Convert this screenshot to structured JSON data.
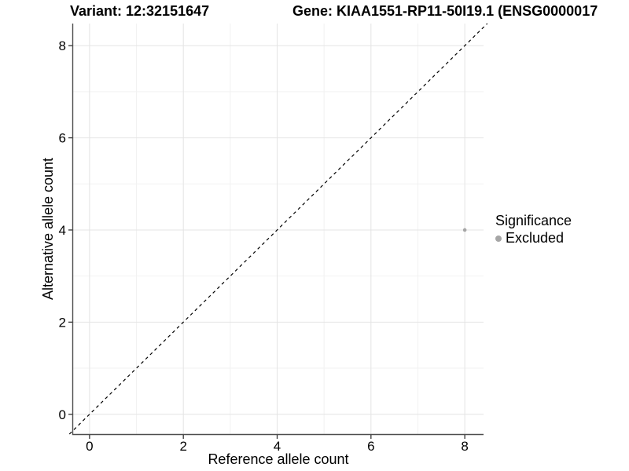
{
  "plot_titles": {
    "variant": "Variant: 12:32151647",
    "gene": "Gene: KIAA1551-RP11-50I19.1 (ENSG0000017"
  },
  "legend": {
    "title": "Significance",
    "items": [
      {
        "label": "Excluded",
        "color": "#a6a6a6"
      }
    ]
  },
  "chart_data": {
    "type": "scatter",
    "xlabel": "Reference allele count",
    "ylabel": "Alternative allele count",
    "x_ticks": [
      0,
      2,
      4,
      6,
      8
    ],
    "y_ticks": [
      0,
      2,
      4,
      6,
      8
    ],
    "xlim": [
      -0.35,
      8.4
    ],
    "ylim": [
      -0.43,
      8.48
    ],
    "grid": true,
    "legend_position": "right",
    "series": [
      {
        "name": "Excluded",
        "color": "#a6a6a6",
        "points": [
          {
            "x": 8,
            "y": 4
          }
        ]
      }
    ],
    "reference_line": {
      "slope": 1,
      "intercept": 0,
      "style": "dashed",
      "color": "#000000"
    }
  },
  "colors": {
    "background": "#ffffff",
    "grid_major": "#e4e4e4",
    "grid_minor": "#f2f2f2",
    "axis_line": "#4d4d4d",
    "tick": "#333333",
    "text": "#000000"
  }
}
